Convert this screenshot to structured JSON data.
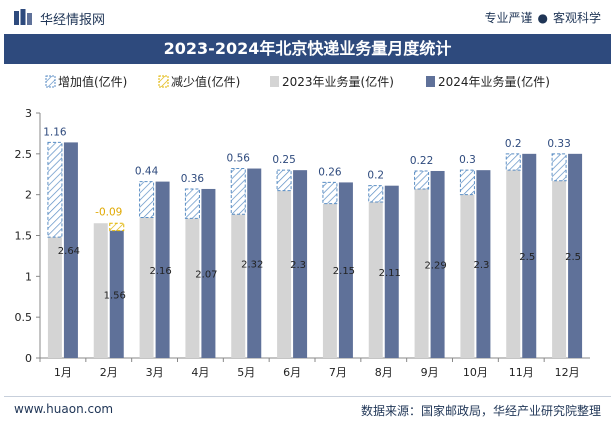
{
  "header": {
    "brand": "华经情报网",
    "slogan_left": "专业严谨",
    "slogan_sep": "●",
    "slogan_right": "客观科学"
  },
  "footer": {
    "site": "www.huaon.com",
    "source": "数据来源：国家邮政局，华经产业研究院整理"
  },
  "colors": {
    "bar2023": "#d4d4d4",
    "bar2024": "#5f7199",
    "increase": "#5b8ec4",
    "decrease": "#e0b400",
    "label_blue": "#2e4a7d",
    "label_decrease": "#e0a800"
  },
  "chart_data": {
    "type": "bar",
    "title": "2023-2024年北京快递业务量月度统计",
    "categories": [
      "1月",
      "2月",
      "3月",
      "4月",
      "5月",
      "6月",
      "7月",
      "8月",
      "9月",
      "10月",
      "11月",
      "12月"
    ],
    "series": [
      {
        "name": "增加值(亿件)",
        "values": [
          1.16,
          null,
          0.44,
          0.36,
          0.56,
          0.25,
          0.26,
          0.2,
          0.22,
          0.3,
          0.2,
          0.33
        ]
      },
      {
        "name": "减少值(亿件)",
        "values": [
          null,
          -0.09,
          null,
          null,
          null,
          null,
          null,
          null,
          null,
          null,
          null,
          null
        ]
      },
      {
        "name": "2023年业务量(亿件)",
        "values": [
          1.48,
          1.65,
          1.72,
          1.71,
          1.76,
          2.05,
          1.89,
          1.91,
          2.07,
          2.0,
          2.3,
          2.17
        ]
      },
      {
        "name": "2024年业务量(亿件)",
        "values": [
          2.64,
          1.56,
          2.16,
          2.07,
          2.32,
          2.3,
          2.15,
          2.11,
          2.29,
          2.3,
          2.5,
          2.5
        ]
      }
    ],
    "ylim": [
      0,
      3
    ],
    "yticks": [
      "0",
      "0.5",
      "1",
      "1.5",
      "2",
      "2.5",
      "3"
    ],
    "legend_position": "top-left",
    "grid": false
  }
}
